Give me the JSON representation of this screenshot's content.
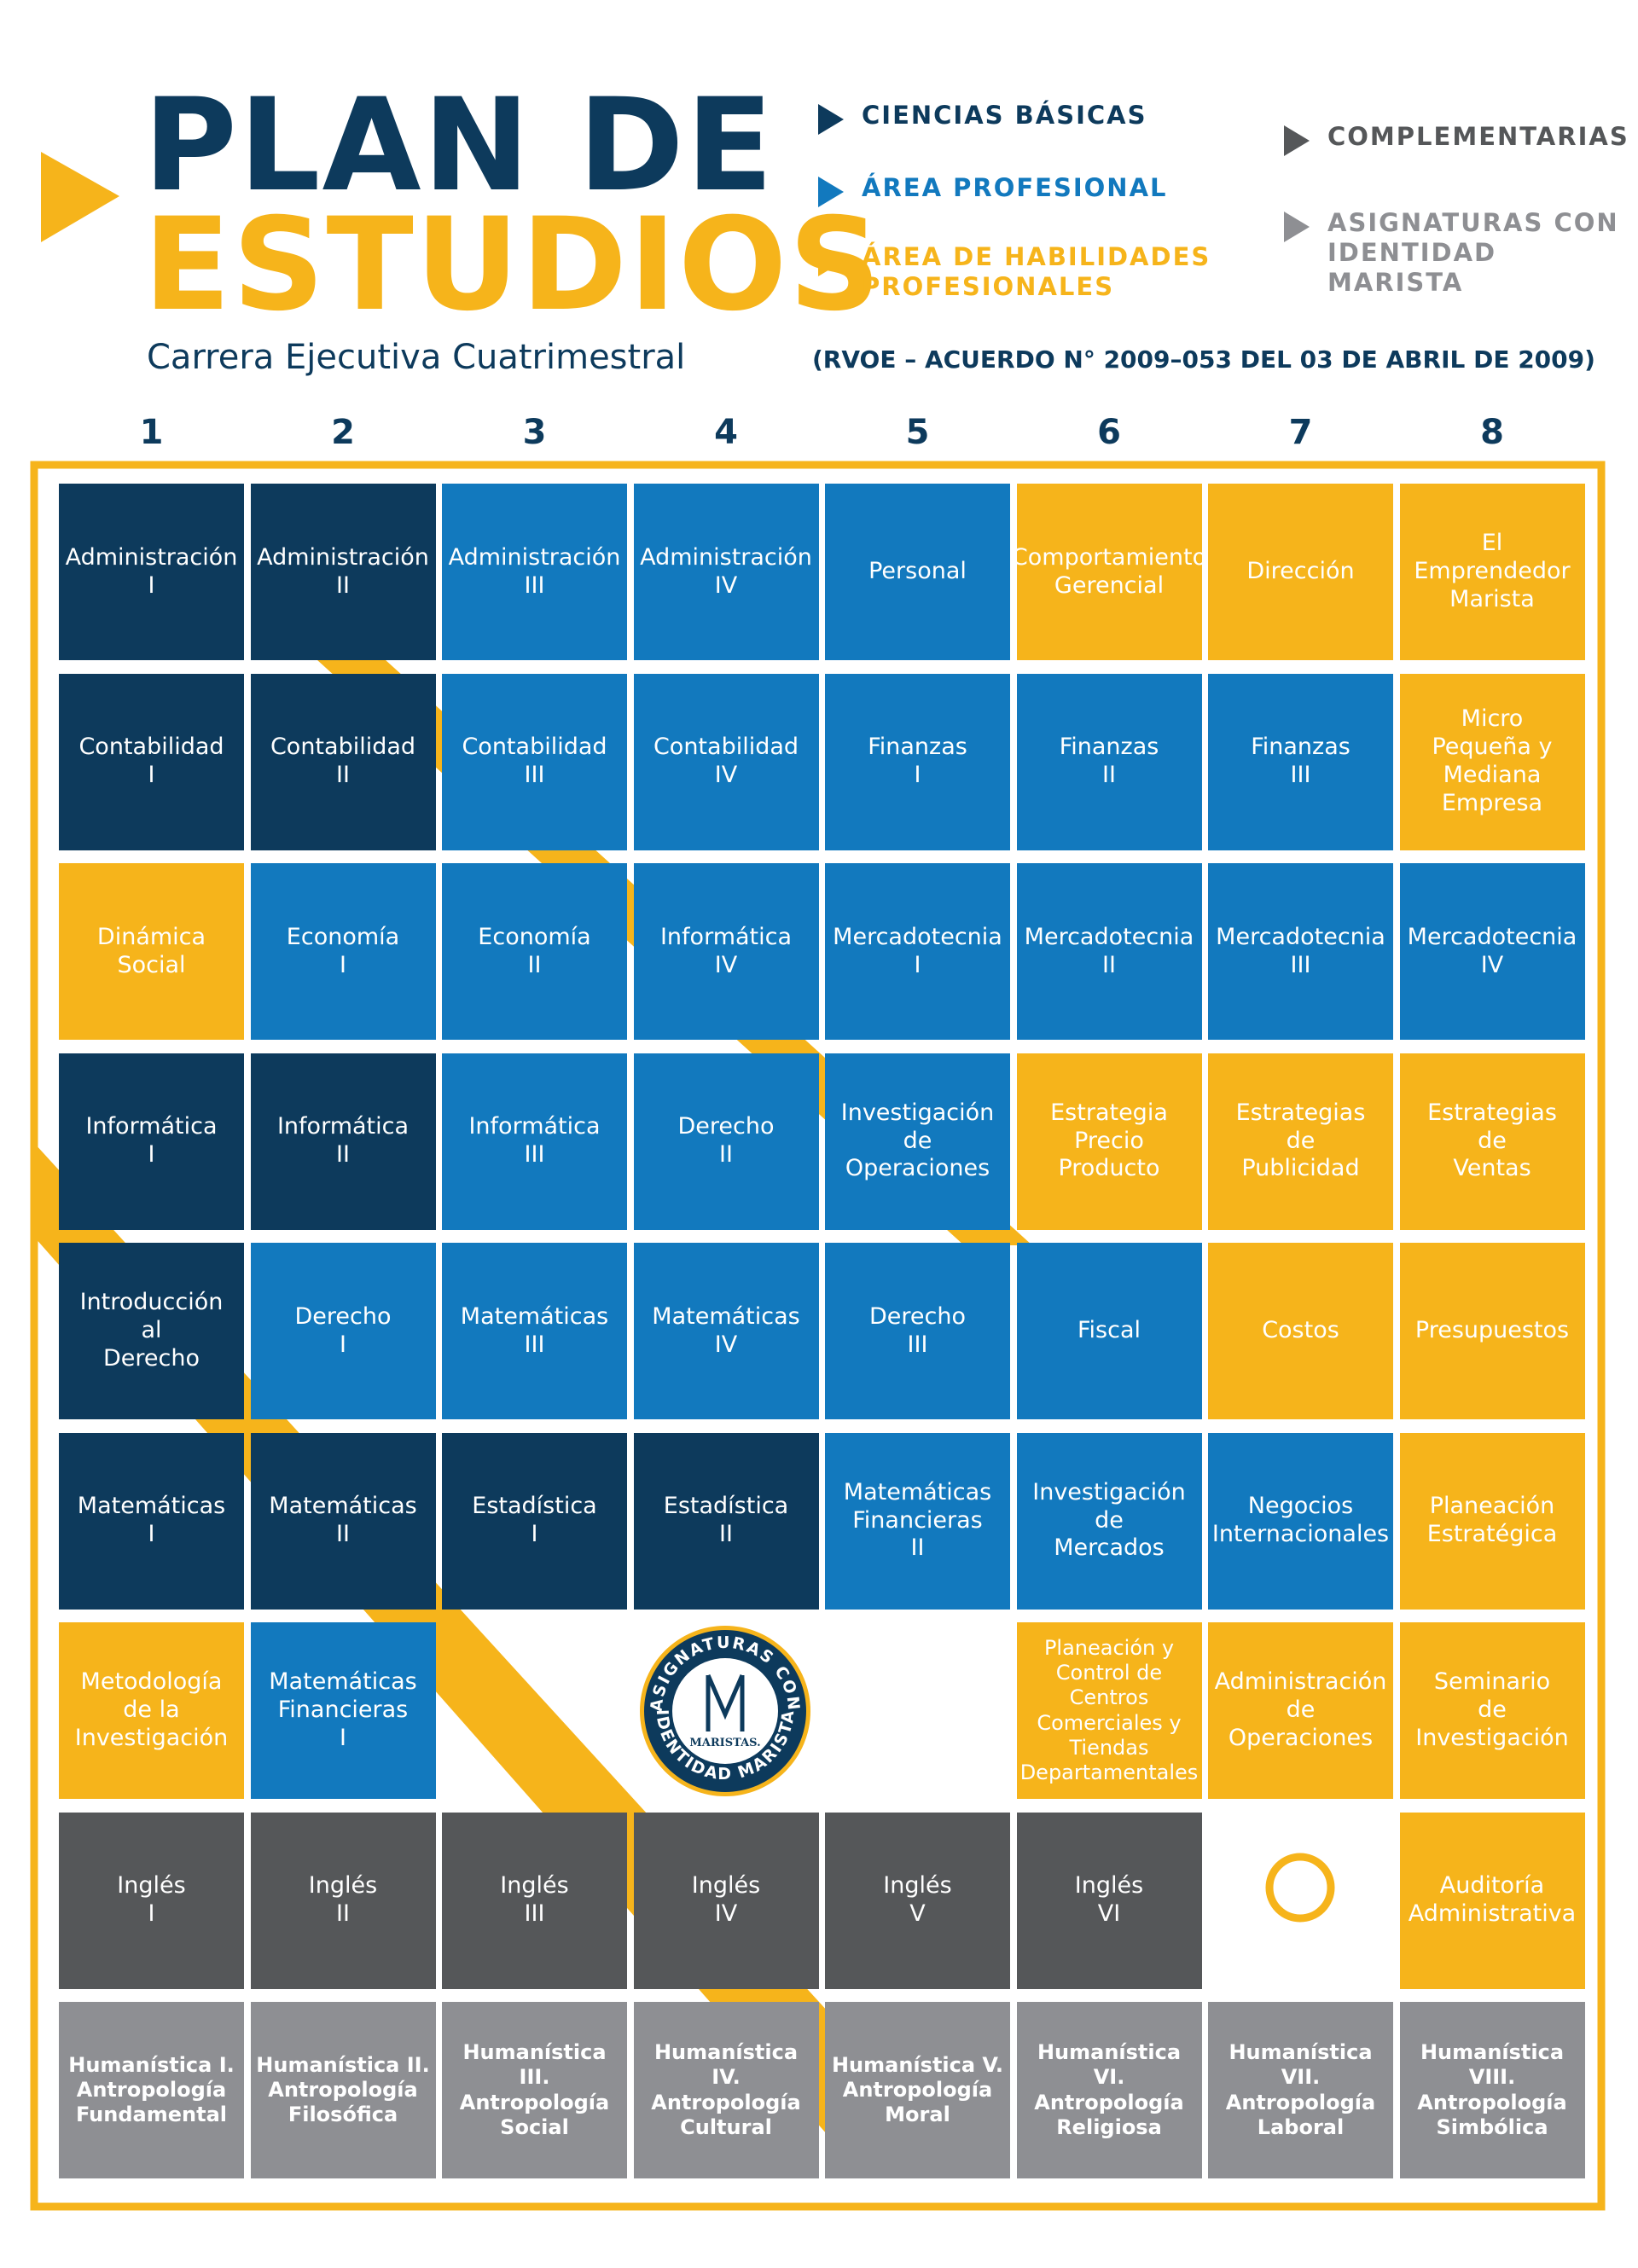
{
  "header": {
    "title_line1": "PLAN DE",
    "title_line2": "ESTUDIOS",
    "subtitle": "Carrera Ejecutiva Cuatrimestral",
    "rvoe": "(RVOE – ACUERDO N° 2009–053 DEL 03 DE ABRIL DE 2009)"
  },
  "legend": [
    {
      "label": "CIENCIAS BÁSICAS",
      "color": "#0d3a5c"
    },
    {
      "label": "ÁREA PROFESIONAL",
      "color": "#1279be"
    },
    {
      "label": "ÁREA DE HABILIDADES\nPROFESIONALES",
      "color": "#f6b41b"
    },
    {
      "label": "COMPLEMENTARIAS",
      "color": "#555759"
    },
    {
      "label": "ASIGNATURAS CON\nIDENTIDAD MARISTA",
      "color": "#8e8f93"
    }
  ],
  "columns": [
    "1",
    "2",
    "3",
    "4",
    "5",
    "6",
    "7",
    "8"
  ],
  "logo": {
    "ring_top": "ASIGNATURAS CON",
    "ring_bottom": "IDENTIDAD MARISTA",
    "center": "MARISTAS."
  },
  "grid": {
    "rows": [
      [
        {
          "text": "Administración\nI",
          "color": "#0d3a5c"
        },
        {
          "text": "Administración\nII",
          "color": "#0d3a5c"
        },
        {
          "text": "Administración\nIII",
          "color": "#1279be"
        },
        {
          "text": "Administración\nIV",
          "color": "#1279be"
        },
        {
          "text": "Personal",
          "color": "#1279be"
        },
        {
          "text": "Comportamiento\nGerencial",
          "color": "#f6b41b"
        },
        {
          "text": "Dirección",
          "color": "#f6b41b"
        },
        {
          "text": "El\nEmprendedor\nMarista",
          "color": "#f6b41b"
        }
      ],
      [
        {
          "text": "Contabilidad\nI",
          "color": "#0d3a5c"
        },
        {
          "text": "Contabilidad\nII",
          "color": "#0d3a5c"
        },
        {
          "text": "Contabilidad\nIII",
          "color": "#1279be"
        },
        {
          "text": "Contabilidad\nIV",
          "color": "#1279be"
        },
        {
          "text": "Finanzas\nI",
          "color": "#1279be"
        },
        {
          "text": "Finanzas\nII",
          "color": "#1279be"
        },
        {
          "text": "Finanzas\nIII",
          "color": "#1279be"
        },
        {
          "text": "Micro\nPequeña y\nMediana\nEmpresa",
          "color": "#f6b41b"
        }
      ],
      [
        {
          "text": "Dinámica\nSocial",
          "color": "#f6b41b"
        },
        {
          "text": "Economía\nI",
          "color": "#1279be"
        },
        {
          "text": "Economía\nII",
          "color": "#1279be"
        },
        {
          "text": "Informática\nIV",
          "color": "#1279be"
        },
        {
          "text": "Mercadotecnia\nI",
          "color": "#1279be"
        },
        {
          "text": "Mercadotecnia\nII",
          "color": "#1279be"
        },
        {
          "text": "Mercadotecnia\nIII",
          "color": "#1279be"
        },
        {
          "text": "Mercadotecnia\nIV",
          "color": "#1279be"
        }
      ],
      [
        {
          "text": "Informática\nI",
          "color": "#0d3a5c"
        },
        {
          "text": "Informática\nII",
          "color": "#0d3a5c"
        },
        {
          "text": "Informática\nIII",
          "color": "#1279be"
        },
        {
          "text": "Derecho\nII",
          "color": "#1279be"
        },
        {
          "text": "Investigación\nde\nOperaciones",
          "color": "#1279be"
        },
        {
          "text": "Estrategia\nPrecio\nProducto",
          "color": "#f6b41b"
        },
        {
          "text": "Estrategias\nde\nPublicidad",
          "color": "#f6b41b"
        },
        {
          "text": "Estrategias\nde\nVentas",
          "color": "#f6b41b"
        }
      ],
      [
        {
          "text": "Introducción\nal\nDerecho",
          "color": "#0d3a5c"
        },
        {
          "text": "Derecho\nI",
          "color": "#1279be"
        },
        {
          "text": "Matemáticas\nIII",
          "color": "#1279be"
        },
        {
          "text": "Matemáticas\nIV",
          "color": "#1279be"
        },
        {
          "text": "Derecho\nIII",
          "color": "#1279be"
        },
        {
          "text": "Fiscal",
          "color": "#1279be"
        },
        {
          "text": "Costos",
          "color": "#f6b41b"
        },
        {
          "text": "Presupuestos",
          "color": "#f6b41b"
        }
      ],
      [
        {
          "text": "Matemáticas\nI",
          "color": "#0d3a5c"
        },
        {
          "text": "Matemáticas\nII",
          "color": "#0d3a5c"
        },
        {
          "text": "Estadística\nI",
          "color": "#0d3a5c"
        },
        {
          "text": "Estadística\nII",
          "color": "#0d3a5c"
        },
        {
          "text": "Matemáticas\nFinancieras\nII",
          "color": "#1279be"
        },
        {
          "text": "Investigación\nde\nMercados",
          "color": "#1279be"
        },
        {
          "text": "Negocios\nInternacionales",
          "color": "#1279be"
        },
        {
          "text": "Planeación\nEstratégica",
          "color": "#f6b41b"
        }
      ],
      [
        {
          "text": "Metodología\nde la\nInvestigación",
          "color": "#f6b41b"
        },
        {
          "text": "Matemáticas\nFinancieras\nI",
          "color": "#1279be"
        },
        null,
        null,
        null,
        {
          "text": "Planeación y\nControl de\nCentros\nComerciales y\nTiendas\nDepartamentales",
          "color": "#f6b41b"
        },
        {
          "text": "Administración\nde\nOperaciones",
          "color": "#f6b41b"
        },
        {
          "text": "Seminario\nde\nInvestigación",
          "color": "#f6b41b"
        }
      ],
      [
        {
          "text": "Inglés\nI",
          "color": "#555759"
        },
        {
          "text": "Inglés\nII",
          "color": "#555759"
        },
        {
          "text": "Inglés\nIII",
          "color": "#555759"
        },
        {
          "text": "Inglés\nIV",
          "color": "#555759"
        },
        {
          "text": "Inglés\nV",
          "color": "#555759"
        },
        {
          "text": "Inglés\nVI",
          "color": "#555759"
        },
        null,
        {
          "text": "Auditoría\nAdministrativa",
          "color": "#f6b41b"
        }
      ],
      [
        {
          "text": "Humanística I.\nAntropología\nFundamental",
          "color": "#8e8f93"
        },
        {
          "text": "Humanística II.\nAntropología\nFilosófica",
          "color": "#8e8f93"
        },
        {
          "text": "Humanística III.\nAntropología\nSocial",
          "color": "#8e8f93"
        },
        {
          "text": "Humanística IV.\nAntropología\nCultural",
          "color": "#8e8f93"
        },
        {
          "text": "Humanística V.\nAntropología\nMoral",
          "color": "#8e8f93"
        },
        {
          "text": "Humanística VI.\nAntropología\nReligiosa",
          "color": "#8e8f93"
        },
        {
          "text": "Humanística VII.\nAntropología\nLaboral",
          "color": "#8e8f93"
        },
        {
          "text": "Humanística VIII.\nAntropología\nSimbólica",
          "color": "#8e8f93"
        }
      ]
    ]
  }
}
